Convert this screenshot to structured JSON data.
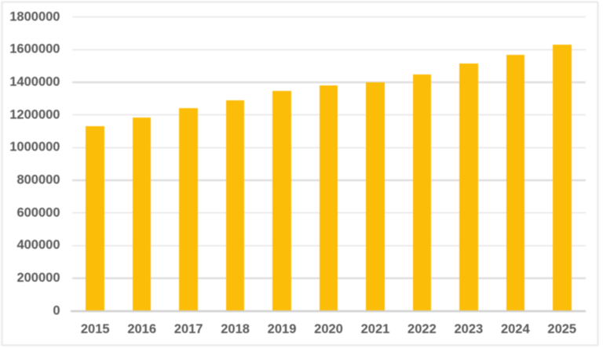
{
  "chart_data": {
    "type": "bar",
    "title": "",
    "xlabel": "",
    "ylabel": "",
    "categories": [
      "2015",
      "2016",
      "2017",
      "2018",
      "2019",
      "2020",
      "2021",
      "2022",
      "2023",
      "2024",
      "2025"
    ],
    "values": [
      1130000,
      1186000,
      1240000,
      1291000,
      1349000,
      1382000,
      1400000,
      1447000,
      1515000,
      1568000,
      1632000
    ],
    "ylim": [
      0,
      1800000
    ],
    "ytick_step": 200000,
    "ytick_labels": [
      "0",
      "200000",
      "400000",
      "600000",
      "800000",
      "1000000",
      "1200000",
      "1400000",
      "1600000",
      "1800000"
    ],
    "grid": true,
    "legend": false,
    "bar_color": "#fcbd08",
    "gridline_color": "#d7d7d7",
    "axis_line_color": "#c3c3c3",
    "tick_label_color": "#595959",
    "background_color": "#ffffff",
    "frame_border_color": "#d2d2d2"
  }
}
